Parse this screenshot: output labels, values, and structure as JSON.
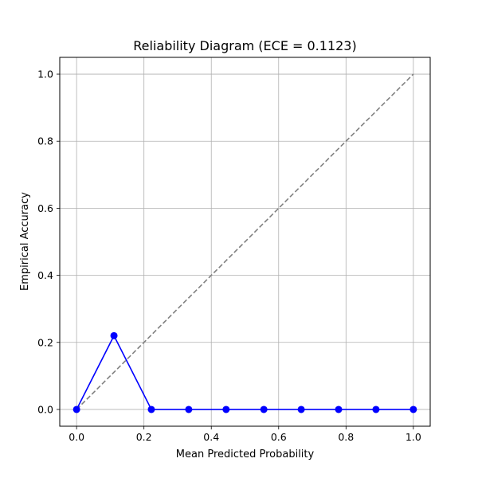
{
  "chart_data": {
    "type": "line",
    "title": "Reliability Diagram (ECE = 0.1123)",
    "xlabel": "Mean Predicted Probability",
    "ylabel": "Empirical Accuracy",
    "xlim": [
      -0.05,
      1.05
    ],
    "ylim": [
      -0.05,
      1.05
    ],
    "xticks": [
      "0.0",
      "0.2",
      "0.4",
      "0.6",
      "0.8",
      "1.0"
    ],
    "yticks": [
      "0.0",
      "0.2",
      "0.4",
      "0.6",
      "0.8",
      "1.0"
    ],
    "grid": true,
    "series": [
      {
        "style": "solid-with-markers",
        "color": "#0000ff",
        "x": [
          0.0,
          0.111,
          0.222,
          0.333,
          0.444,
          0.556,
          0.667,
          0.778,
          0.889,
          1.0
        ],
        "y": [
          0.0,
          0.22,
          0.0,
          0.0,
          0.0,
          0.0,
          0.0,
          0.0,
          0.0,
          0.0
        ]
      },
      {
        "style": "dashed",
        "color": "#808080",
        "x": [
          0.0,
          1.0
        ],
        "y": [
          0.0,
          1.0
        ]
      }
    ]
  }
}
